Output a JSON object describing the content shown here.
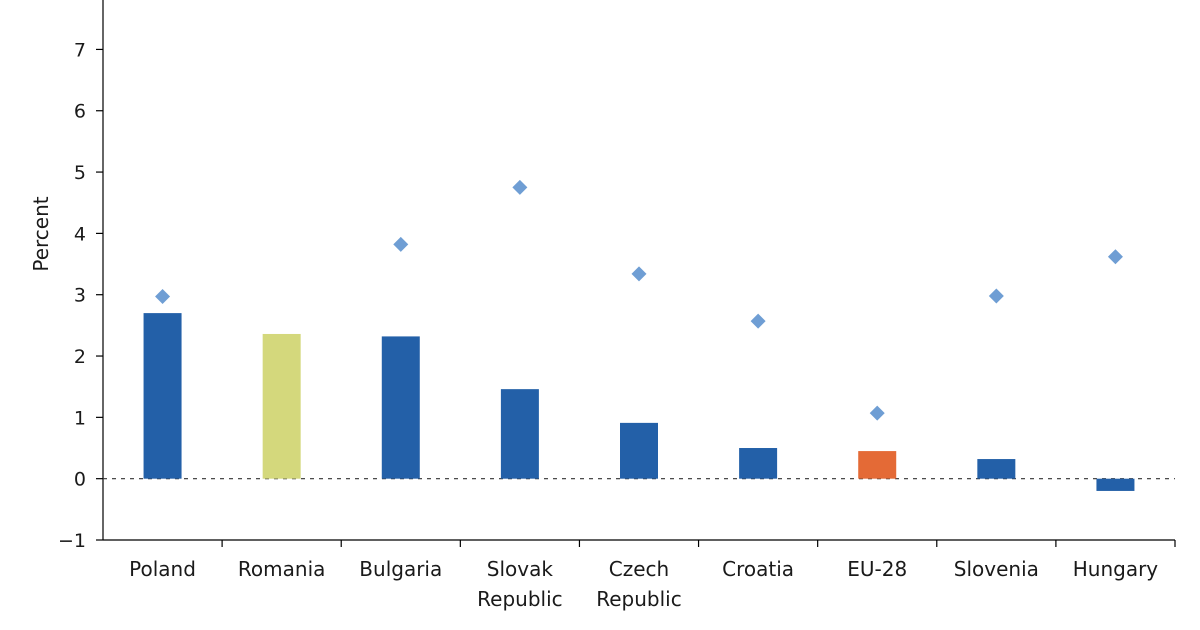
{
  "chart_data": {
    "type": "bar",
    "title": "",
    "xlabel": "",
    "ylabel": "Percent",
    "ylim": [
      -1,
      8
    ],
    "yticks": [
      -1,
      0,
      1,
      2,
      3,
      4,
      5,
      6,
      7
    ],
    "grid": false,
    "categories": [
      [
        "Poland"
      ],
      [
        "Romania"
      ],
      [
        "Bulgaria"
      ],
      [
        "Slovak",
        "Republic"
      ],
      [
        "Czech",
        "Republic"
      ],
      [
        "Croatia"
      ],
      [
        "EU-28"
      ],
      [
        "Slovenia"
      ],
      [
        "Hungary"
      ]
    ],
    "series": [
      {
        "name": "bars",
        "kind": "bar",
        "values": [
          2.7,
          2.36,
          2.32,
          1.46,
          0.91,
          0.5,
          0.45,
          0.32,
          -0.2
        ],
        "colors": [
          "#2360a8",
          "#d4d87c",
          "#2360a8",
          "#2360a8",
          "#2360a8",
          "#2360a8",
          "#e46a36",
          "#2360a8",
          "#2360a8"
        ]
      },
      {
        "name": "markers",
        "kind": "scatter",
        "marker": "diamond",
        "color": "#6f9ed4",
        "values": [
          2.97,
          null,
          3.82,
          4.75,
          3.34,
          2.57,
          1.07,
          2.98,
          3.62
        ]
      }
    ],
    "zero_line": "dashed"
  }
}
